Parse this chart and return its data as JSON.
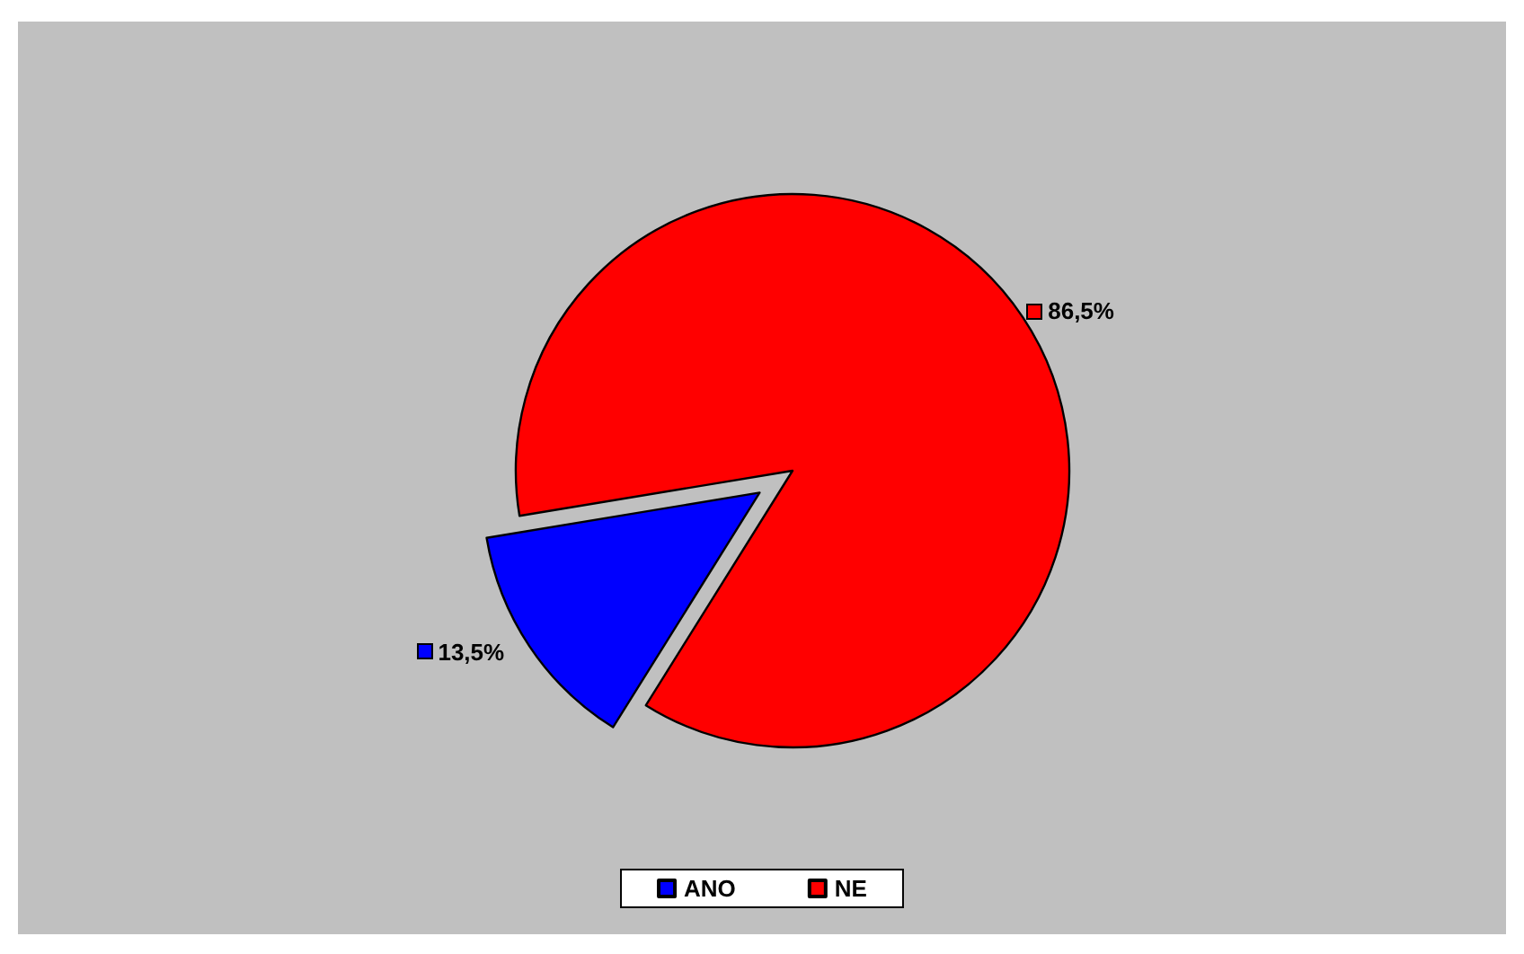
{
  "chart_data": {
    "type": "pie",
    "categories": [
      "ANO",
      "NE"
    ],
    "values": [
      13.5,
      86.5
    ],
    "colors": [
      "#0000ff",
      "#ff0000"
    ],
    "value_labels": [
      "13,5%",
      "86,5%"
    ],
    "legend": "bottom"
  }
}
